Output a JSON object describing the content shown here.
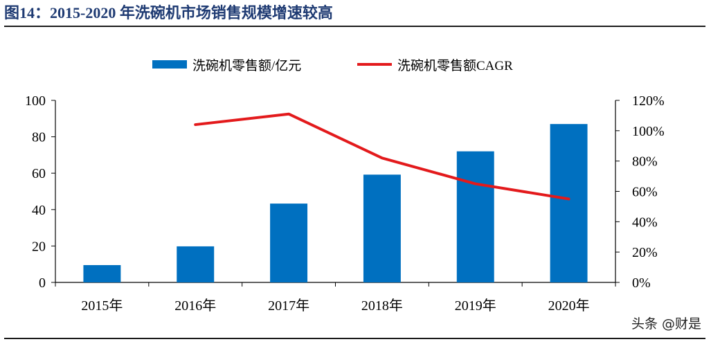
{
  "title": "图14：2015-2020 年洗碗机市场销售规模增速较高",
  "watermark": "头条 @财是",
  "chart_data": {
    "type": "bar",
    "categories": [
      "2015年",
      "2016年",
      "2017年",
      "2018年",
      "2019年",
      "2020年"
    ],
    "series": [
      {
        "name": "洗碗机零售额/亿元",
        "type": "bar",
        "axis": "left",
        "color": "#0070c0",
        "values": [
          9.5,
          19.8,
          43.3,
          59.2,
          72.0,
          87.0
        ]
      },
      {
        "name": "洗碗机零售额CAGR",
        "type": "line",
        "axis": "right",
        "color": "#e31a1c",
        "values": [
          null,
          1.04,
          1.11,
          0.82,
          0.65,
          0.55
        ]
      }
    ],
    "y_left": {
      "min": 0,
      "max": 100,
      "ticks": [
        0,
        20,
        40,
        60,
        80,
        100
      ]
    },
    "y_right": {
      "min": 0,
      "max": 1.2,
      "ticks": [
        0,
        0.2,
        0.4,
        0.6,
        0.8,
        1.0,
        1.2
      ],
      "tick_labels": [
        "0%",
        "20%",
        "40%",
        "60%",
        "80%",
        "100%",
        "120%"
      ]
    },
    "legend_position": "top-center",
    "grid": false
  }
}
